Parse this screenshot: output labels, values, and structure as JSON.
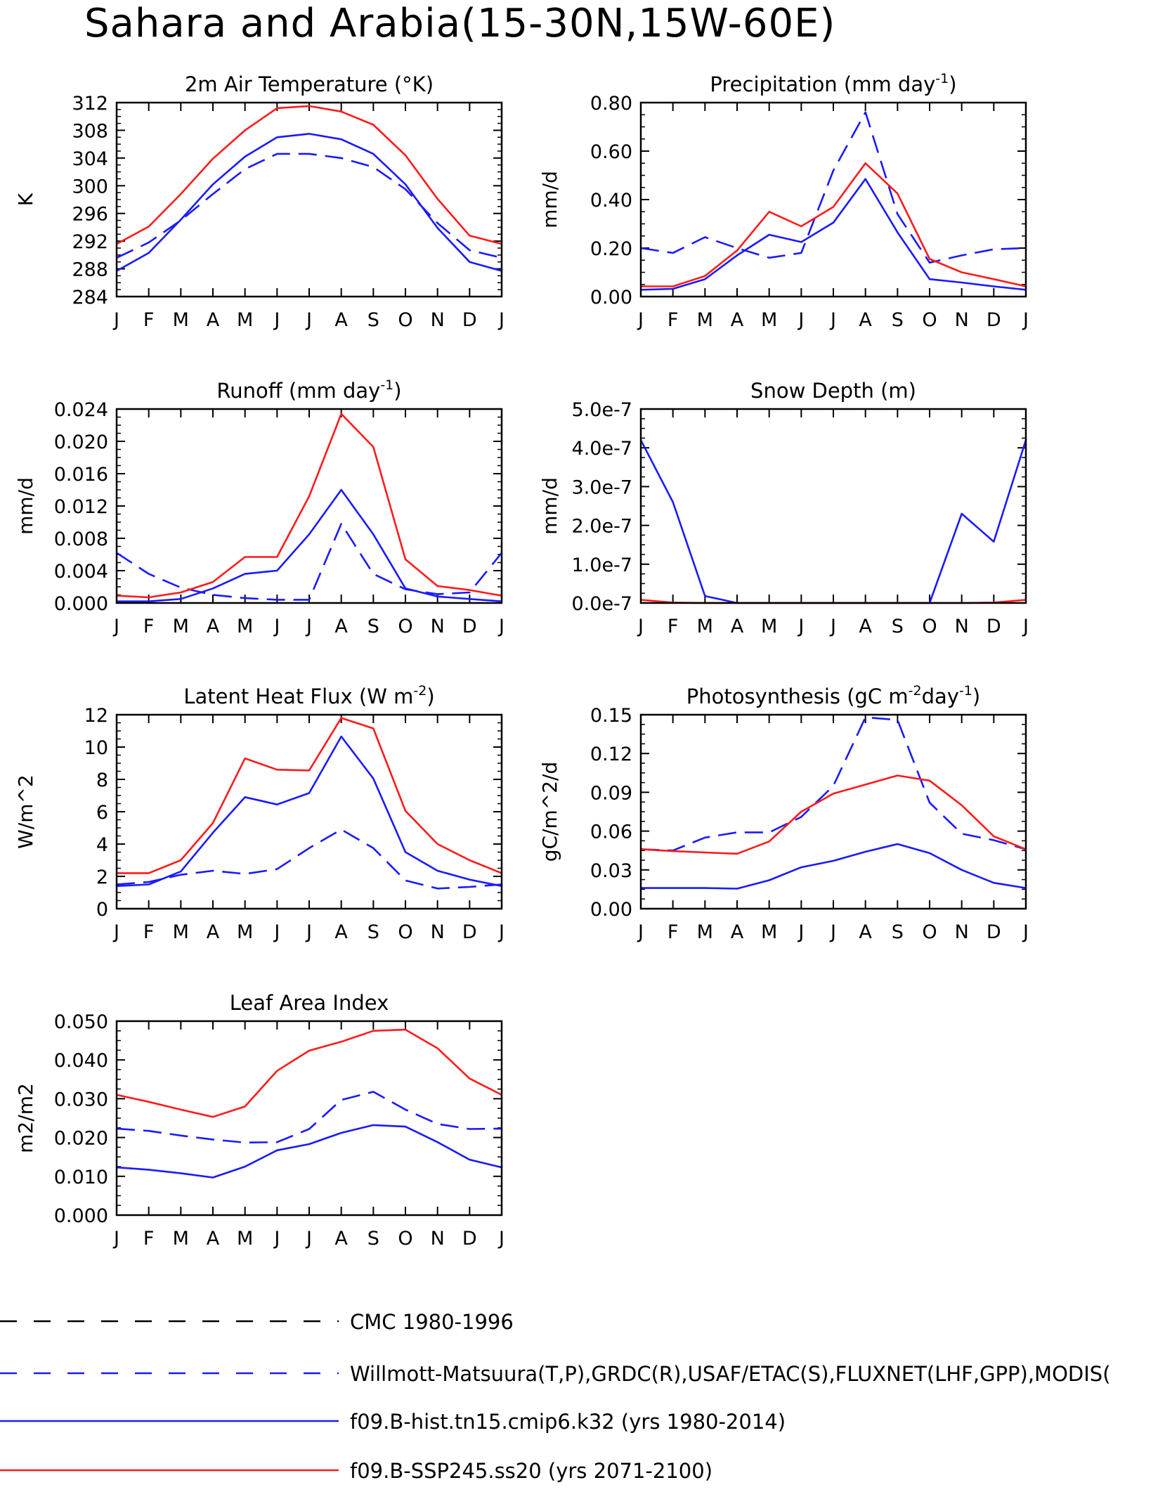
{
  "title": "Sahara and Arabia(15-30N,15W-60E)",
  "months": [
    "J",
    "F",
    "M",
    "A",
    "M",
    "J",
    "J",
    "A",
    "S",
    "O",
    "N",
    "D",
    "J"
  ],
  "legend": [
    {
      "label": "CMC 1980-1996",
      "color": "#000000",
      "dashed": true
    },
    {
      "label": "Willmott-Matsuura(T,P),GRDC(R),USAF/ETAC(S),FLUXNET(LHF,GPP),MODIS(",
      "color": "#1a1aff",
      "dashed": true
    },
    {
      "label": "f09.B-hist.tn15.cmip6.k32 (yrs 1980-2014)",
      "color": "#1a1aff",
      "dashed": false
    },
    {
      "label": "f09.B-SSP245.ss20 (yrs 2071-2100)",
      "color": "#ff1a1a",
      "dashed": false
    }
  ],
  "chart_data": [
    {
      "type": "line",
      "title": "2m Air Temperature (°K)",
      "ylabel": "K",
      "ylim": [
        284,
        312
      ],
      "yticks": [
        "284",
        "288",
        "292",
        "296",
        "300",
        "304",
        "308",
        "312"
      ],
      "series": [
        {
          "name": "Willmott-Matsuura(T,P),GRDC(R),USAF/ETAC(S),FLUXNET(LHF,GPP),MODIS(",
          "color": "#1a1aff",
          "dashed": true,
          "values": [
            289.6,
            291.8,
            295.0,
            298.8,
            302.4,
            304.6,
            304.6,
            304.0,
            302.7,
            299.5,
            294.6,
            290.7,
            289.6
          ]
        },
        {
          "name": "f09.B-hist.tn15.cmip6.k32 (yrs 1980-2014)",
          "color": "#1a1aff",
          "dashed": false,
          "values": [
            287.7,
            290.3,
            295.1,
            300.2,
            304.2,
            307.0,
            307.5,
            306.7,
            304.6,
            300.2,
            293.9,
            289.0,
            287.7
          ]
        },
        {
          "name": "f09.B-SSP245.ss20 (yrs 2071-2100)",
          "color": "#ff1a1a",
          "dashed": false,
          "values": [
            291.6,
            294.1,
            298.8,
            303.9,
            308.0,
            311.2,
            311.5,
            310.7,
            308.8,
            304.4,
            298.1,
            292.8,
            291.6
          ]
        }
      ]
    },
    {
      "type": "line",
      "title": "Precipitation (mm day",
      "title_sup": "-1",
      "title_end": ")",
      "ylabel": "mm/d",
      "ylim": [
        0,
        0.8
      ],
      "yticks": [
        "0.00",
        "0.20",
        "0.40",
        "0.60",
        "0.80"
      ],
      "series": [
        {
          "name": "Willmott-Matsuura(T,P),GRDC(R),USAF/ETAC(S),FLUXNET(LHF,GPP),MODIS(",
          "color": "#1a1aff",
          "dashed": true,
          "values": [
            0.2,
            0.18,
            0.245,
            0.2,
            0.16,
            0.18,
            0.52,
            0.76,
            0.34,
            0.14,
            0.17,
            0.195,
            0.2
          ]
        },
        {
          "name": "f09.B-hist.tn15.cmip6.k32 (yrs 1980-2014)",
          "color": "#1a1aff",
          "dashed": false,
          "values": [
            0.028,
            0.032,
            0.072,
            0.17,
            0.255,
            0.225,
            0.305,
            0.485,
            0.265,
            0.072,
            0.058,
            0.042,
            0.028
          ]
        },
        {
          "name": "f09.B-SSP245.ss20 (yrs 2071-2100)",
          "color": "#ff1a1a",
          "dashed": false,
          "values": [
            0.042,
            0.042,
            0.085,
            0.19,
            0.35,
            0.29,
            0.37,
            0.55,
            0.425,
            0.155,
            0.1,
            0.072,
            0.042
          ]
        }
      ]
    },
    {
      "type": "line",
      "title": "Runoff (mm day",
      "title_sup": "-1",
      "title_end": ")",
      "ylabel": "mm/d",
      "ylim": [
        0,
        0.024
      ],
      "yticks": [
        "0.000",
        "0.004",
        "0.008",
        "0.012",
        "0.016",
        "0.020",
        "0.024"
      ],
      "series": [
        {
          "name": "Willmott-Matsuura(T,P),GRDC(R),USAF/ETAC(S),FLUXNET(LHF,GPP),MODIS(",
          "color": "#1a1aff",
          "dashed": true,
          "values": [
            0.0062,
            0.0036,
            0.0019,
            0.001,
            0.0006,
            0.0004,
            0.0004,
            0.0098,
            0.0036,
            0.0017,
            0.0011,
            0.0013,
            0.0062
          ]
        },
        {
          "name": "f09.B-hist.tn15.cmip6.k32 (yrs 1980-2014)",
          "color": "#1a1aff",
          "dashed": false,
          "values": [
            0.0002,
            0.0002,
            0.0005,
            0.0018,
            0.0036,
            0.004,
            0.0085,
            0.014,
            0.0085,
            0.0018,
            0.0008,
            0.0005,
            0.0002
          ]
        },
        {
          "name": "f09.B-SSP245.ss20 (yrs 2071-2100)",
          "color": "#ff1a1a",
          "dashed": false,
          "values": [
            0.0009,
            0.0007,
            0.0013,
            0.0026,
            0.0057,
            0.0057,
            0.0132,
            0.0234,
            0.0193,
            0.0054,
            0.0021,
            0.0016,
            0.0009
          ]
        }
      ]
    },
    {
      "type": "line",
      "title": "Snow Depth (m)",
      "ylabel": "mm/d",
      "ylim": [
        0,
        5e-07
      ],
      "yticks": [
        "0.0e-7",
        "1.0e-7",
        "2.0e-7",
        "3.0e-7",
        "4.0e-7",
        "5.0e-7"
      ],
      "series": [
        {
          "name": "f09.B-hist.tn15.cmip6.k32 (yrs 1980-2014)",
          "color": "#1a1aff",
          "dashed": false,
          "values": [
            4.2e-07,
            2.6e-07,
            1.8e-08,
            0,
            0,
            0,
            0,
            0,
            0,
            0,
            2.3e-07,
            1.58e-07,
            4.2e-07
          ]
        },
        {
          "name": "f09.B-SSP245.ss20 (yrs 2071-2100)",
          "color": "#ff1a1a",
          "dashed": false,
          "values": [
            8e-09,
            1e-09,
            0,
            0,
            0,
            0,
            0,
            0,
            0,
            0,
            0,
            1e-09,
            8e-09
          ]
        }
      ]
    },
    {
      "type": "line",
      "title": "Latent Heat Flux (W m",
      "title_sup": "-2",
      "title_end": ")",
      "ylabel": "W/m^2",
      "ylim": [
        0,
        12
      ],
      "yticks": [
        "0",
        "2",
        "4",
        "6",
        "8",
        "10",
        "12"
      ],
      "series": [
        {
          "name": "Willmott-Matsuura(T,P),GRDC(R),USAF/ETAC(S),FLUXNET(LHF,GPP),MODIS(",
          "color": "#1a1aff",
          "dashed": true,
          "values": [
            1.5,
            1.65,
            2.1,
            2.35,
            2.15,
            2.45,
            3.75,
            4.9,
            3.75,
            1.75,
            1.25,
            1.35,
            1.5
          ]
        },
        {
          "name": "f09.B-hist.tn15.cmip6.k32 (yrs 1980-2014)",
          "color": "#1a1aff",
          "dashed": false,
          "values": [
            1.4,
            1.5,
            2.3,
            4.7,
            6.9,
            6.45,
            7.15,
            10.65,
            8.05,
            3.5,
            2.35,
            1.8,
            1.4
          ]
        },
        {
          "name": "f09.B-SSP245.ss20 (yrs 2071-2100)",
          "color": "#ff1a1a",
          "dashed": false,
          "values": [
            2.2,
            2.2,
            3.0,
            5.3,
            9.3,
            8.6,
            8.55,
            11.8,
            11.15,
            6.05,
            4.0,
            3.0,
            2.2
          ]
        }
      ]
    },
    {
      "type": "line",
      "title": "Photosynthesis (gC m",
      "title_sup": "-2",
      "title_end": "day",
      "title_sup2": "-1",
      "title_end2": ")",
      "ylabel": "gC/m^2/d",
      "ylim": [
        0,
        0.15
      ],
      "yticks": [
        "0.00",
        "0.03",
        "0.06",
        "0.09",
        "0.12",
        "0.15"
      ],
      "series": [
        {
          "name": "Willmott-Matsuura(T,P),GRDC(R),USAF/ETAC(S),FLUXNET(LHF,GPP),MODIS(",
          "color": "#1a1aff",
          "dashed": true,
          "values": [
            0.046,
            0.045,
            0.055,
            0.059,
            0.059,
            0.071,
            0.095,
            0.148,
            0.146,
            0.082,
            0.058,
            0.053,
            0.046
          ]
        },
        {
          "name": "f09.B-hist.tn15.cmip6.k32 (yrs 1980-2014)",
          "color": "#1a1aff",
          "dashed": false,
          "values": [
            0.016,
            0.016,
            0.016,
            0.0155,
            0.022,
            0.032,
            0.037,
            0.044,
            0.05,
            0.043,
            0.03,
            0.02,
            0.016
          ]
        },
        {
          "name": "f09.B-SSP245.ss20 (yrs 2071-2100)",
          "color": "#ff1a1a",
          "dashed": false,
          "values": [
            0.046,
            0.0445,
            0.0435,
            0.0425,
            0.052,
            0.075,
            0.089,
            0.096,
            0.103,
            0.099,
            0.08,
            0.056,
            0.046
          ]
        }
      ]
    },
    {
      "type": "line",
      "title": "Leaf Area Index",
      "ylabel": "m2/m2",
      "ylim": [
        0,
        0.05
      ],
      "yticks": [
        "0.000",
        "0.010",
        "0.020",
        "0.030",
        "0.040",
        "0.050"
      ],
      "series": [
        {
          "name": "Willmott-Matsuura(T,P),GRDC(R),USAF/ETAC(S),FLUXNET(LHF,GPP),MODIS(",
          "color": "#1a1aff",
          "dashed": true,
          "values": [
            0.0223,
            0.0217,
            0.0205,
            0.0195,
            0.0187,
            0.0188,
            0.0222,
            0.0297,
            0.0318,
            0.0272,
            0.0235,
            0.0222,
            0.0223
          ]
        },
        {
          "name": "f09.B-hist.tn15.cmip6.k32 (yrs 1980-2014)",
          "color": "#1a1aff",
          "dashed": false,
          "values": [
            0.0123,
            0.0117,
            0.0108,
            0.0097,
            0.0125,
            0.0167,
            0.0183,
            0.0212,
            0.0232,
            0.0228,
            0.0188,
            0.0143,
            0.0123
          ]
        },
        {
          "name": "f09.B-SSP245.ss20 (yrs 2071-2100)",
          "color": "#ff1a1a",
          "dashed": false,
          "values": [
            0.031,
            0.0292,
            0.0272,
            0.0253,
            0.028,
            0.0372,
            0.0424,
            0.0447,
            0.0475,
            0.0478,
            0.043,
            0.0352,
            0.031
          ]
        }
      ]
    }
  ]
}
